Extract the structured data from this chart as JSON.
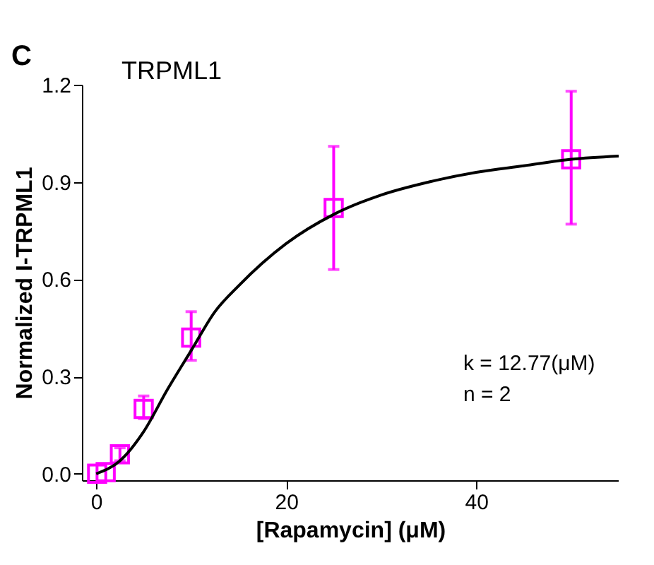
{
  "chart_data": {
    "type": "scatter",
    "title": "TRPML1",
    "xlabel": "[Rapamycin] (μM)",
    "ylabel": "Normalized I-TRPML1",
    "annotations": [
      "C",
      "k = 12.77(μM)",
      "n = 2"
    ],
    "xlim": [
      -1.5,
      55
    ],
    "xticks": [
      0,
      20,
      40
    ],
    "ylim": [
      -0.02,
      1.2
    ],
    "yticks": [
      {
        "value": 0,
        "label": "0.0"
      },
      {
        "value": 0.3,
        "label": "0.3"
      },
      {
        "value": 0.6,
        "label": "0.6"
      },
      {
        "value": 0.9,
        "label": "0.9"
      },
      {
        "value": 1.2,
        "label": "1.2"
      }
    ],
    "grid": false,
    "series": [
      {
        "color": "#ff00ff",
        "marker": "square",
        "x": [
          0.1,
          1,
          2.5,
          5,
          10,
          25,
          50
        ],
        "values": [
          0,
          0.005,
          0.06,
          0.2,
          0.42,
          0.82,
          0.97
        ],
        "errors": [
          null,
          null,
          [
            0.04,
            0.08
          ],
          [
            0.17,
            0.24
          ],
          [
            0.35,
            0.5
          ],
          [
            0.63,
            1.01
          ],
          [
            0.77,
            1.18
          ]
        ]
      },
      {
        "type": "line",
        "color": "#000000",
        "line_style": "solid",
        "marker": "none",
        "x": [
          0,
          2.5,
          5,
          7.5,
          10,
          12.5,
          15,
          20,
          25,
          30,
          35,
          40,
          45,
          50,
          55
        ],
        "values": [
          0,
          0.04,
          0.13,
          0.26,
          0.38,
          0.5,
          0.58,
          0.71,
          0.8,
          0.86,
          0.9,
          0.93,
          0.95,
          0.97,
          0.98
        ]
      }
    ]
  }
}
